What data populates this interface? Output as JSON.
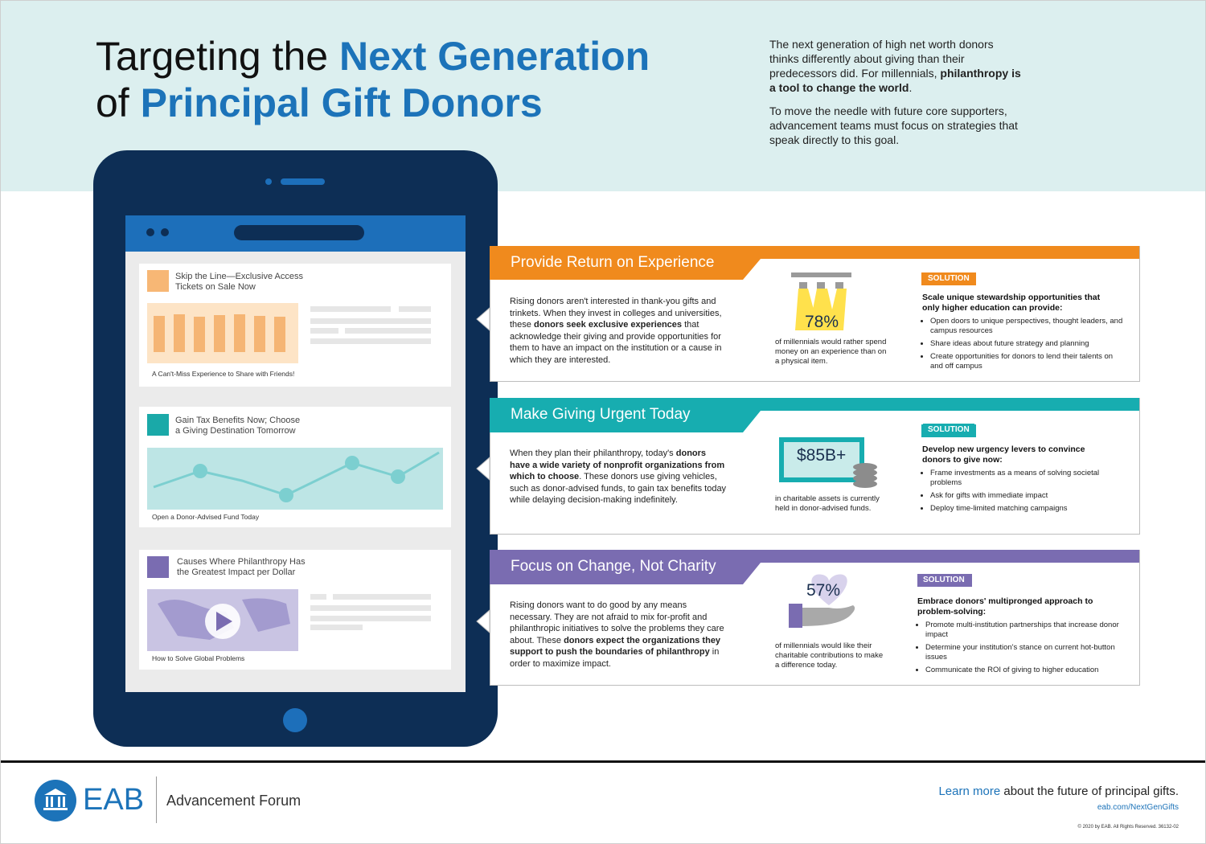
{
  "header": {
    "title_lines": [
      [
        "Targeting the ",
        {
          "text": "Next Generation",
          "bold": true
        }
      ],
      [
        "of ",
        {
          "text": "Principal Gift Donors",
          "bold": true
        }
      ]
    ],
    "intro": [
      [
        "The next generation of high net worth donors thinks differently about giving than their predecessors did. For millennials, ",
        {
          "text": "philanthropy is a tool to change the world",
          "bold": true
        },
        "."
      ],
      [
        "To move the needle with future core supporters, advancement teams must focus on strategies that speak directly to this goal."
      ]
    ]
  },
  "tablet": {
    "cards": [
      {
        "headline": "Skip the Line—Exclusive Access Tickets on Sale Now",
        "caption": "A Can't-Miss Experience to Share with Friends!"
      },
      {
        "headline": "Gain Tax Benefits Now; Choose a Giving Destination Tomorrow",
        "caption": "Open a Donor-Advised Fund Today"
      },
      {
        "headline": "Causes Where Philanthropy Has the Greatest Impact per Dollar",
        "caption": "How to Solve Global Problems"
      }
    ]
  },
  "sections": [
    {
      "heading": "Provide Return on Experience",
      "color": "#f08a1d",
      "body": [
        "Rising donors aren't interested in thank-you gifts and trinkets. When they invest in colleges and universities, these ",
        {
          "text": "donors seek exclusive experiences",
          "bold": true
        },
        " that acknowledge their giving and provide opportunities for them to have an impact on the institution or a cause in which they are interested."
      ],
      "stat": "78%",
      "stat_caption": "of millennials would rather spend money on an experience than on a physical item.",
      "solution_label": "SOLUTION",
      "solution_title": "Scale unique stewardship opportunities that only higher education can provide:",
      "bullets": [
        "Open doors to unique perspectives, thought leaders, and campus resources",
        "Share ideas about future strategy and planning",
        "Create opportunities for donors to lend their talents on and off campus"
      ]
    },
    {
      "heading": "Make Giving Urgent Today",
      "color": "#17adb0",
      "body": [
        "When they plan their philanthropy, today's ",
        {
          "text": "donors have a wide variety of nonprofit organizations from which to choose",
          "bold": true
        },
        ". These donors use giving vehicles, such as donor-advised funds, to gain tax benefits today while delaying decision-making indefinitely."
      ],
      "stat": "$85B+",
      "stat_caption": "in charitable assets is currently held in donor-advised funds.",
      "solution_label": "SOLUTION",
      "solution_title": "Develop new urgency levers to convince donors to give now:",
      "bullets": [
        "Frame investments as a means of solving societal problems",
        "Ask for gifts with immediate impact",
        "Deploy time-limited matching campaigns"
      ]
    },
    {
      "heading": "Focus on Change, Not Charity",
      "color": "#7a6cb1",
      "body": [
        "Rising donors want to do good by any means necessary. They are not afraid to mix for-profit and philanthropic initiatives to solve the problems they care about. These ",
        {
          "text": "donors expect the organizations they support to push the boundaries of philanthropy",
          "bold": true
        },
        " in order to maximize impact."
      ],
      "stat": "57%",
      "stat_caption": "of millennials would like their charitable contributions to make a difference today.",
      "solution_label": "SOLUTION",
      "solution_title": "Embrace donors' multipronged approach to problem-solving:",
      "bullets": [
        "Promote multi-institution partnerships that increase donor impact",
        "Determine your institution's stance on current hot-button issues",
        "Communicate the ROI of giving to higher education"
      ]
    }
  ],
  "footer": {
    "logo": "EAB",
    "forum": "Advancement Forum",
    "learn_more": [
      {
        "text": "Learn more",
        "bold": true
      },
      " about the future of principal gifts."
    ],
    "url": "eab.com/NextGenGifts",
    "copyright": "© 2020 by EAB. All Rights Reserved. 36132-02"
  }
}
